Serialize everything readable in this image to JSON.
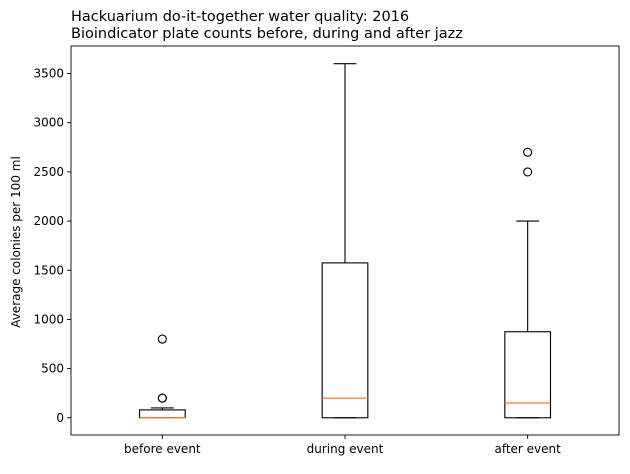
{
  "chart_data": {
    "type": "box",
    "title": "Hackuarium do-it-together water quality: 2016",
    "subtitle": "Bioindicator plate counts before, during and after jazz",
    "xlabel": "",
    "ylabel": "Average colonies per 100 ml",
    "ylim": [
      -175,
      3780
    ],
    "yticks": [
      0,
      500,
      1000,
      1500,
      2000,
      2500,
      3000,
      3500
    ],
    "categories": [
      "before event",
      "during event",
      "after event"
    ],
    "boxes": [
      {
        "category": "before event",
        "whisker_low": 0,
        "q1": 0,
        "median": 0,
        "q3": 80,
        "whisker_high": 100,
        "fliers": [
          200,
          200,
          800
        ]
      },
      {
        "category": "during event",
        "whisker_low": 0,
        "q1": 0,
        "median": 200,
        "q3": 1575,
        "whisker_high": 3600,
        "fliers": []
      },
      {
        "category": "after event",
        "whisker_low": 0,
        "q1": 0,
        "median": 150,
        "q3": 875,
        "whisker_high": 2000,
        "fliers": [
          2500,
          2700
        ]
      }
    ],
    "colors": {
      "box": "#000000",
      "median": "#ff7f0e",
      "flier": "#000000"
    },
    "grid": false,
    "legend": "none"
  }
}
